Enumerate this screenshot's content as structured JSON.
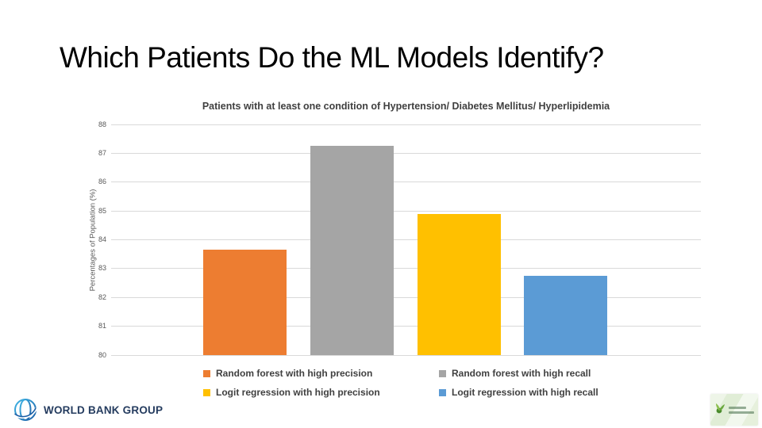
{
  "slide": {
    "title": "Which Patients Do the ML Models Identify?"
  },
  "chart_data": {
    "type": "bar",
    "title": "Patients with at least one condition of Hypertension/ Diabetes Mellitus/ Hyperlipidemia",
    "xlabel": "",
    "ylabel": "Percentages of Population (%)",
    "ylim": [
      80,
      88
    ],
    "yticks": [
      80,
      81,
      82,
      83,
      84,
      85,
      86,
      87,
      88
    ],
    "grid": true,
    "legend_position": "bottom",
    "series": [
      {
        "name": "Random forest with high precision",
        "value": 83.65,
        "color": "#ED7D31"
      },
      {
        "name": "Random forest with high recall",
        "value": 87.25,
        "color": "#A5A5A5"
      },
      {
        "name": "Logit regression with high precision",
        "value": 84.9,
        "color": "#FFC000"
      },
      {
        "name": "Logit regression with high recall",
        "value": 82.76,
        "color": "#5B9BD5"
      }
    ]
  },
  "footer": {
    "world_bank_logo_text": "WORLD BANK GROUP"
  },
  "colors": {
    "grid": "#D9D9D9",
    "axis_text": "#595959",
    "chart_title_text": "#404040",
    "legend_text": "#404040",
    "slide_title_text": "#000000",
    "world_bank_navy": "#253C5F",
    "bar_orange": "#ED7D31",
    "bar_gray": "#A5A5A5",
    "bar_yellow": "#FFC000",
    "bar_blue": "#5B9BD5"
  }
}
